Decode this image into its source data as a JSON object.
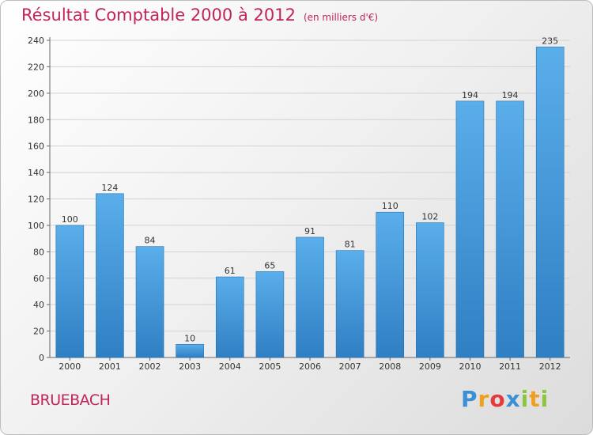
{
  "title": "Résultat Comptable 2000 à 2012",
  "subtitle": "(en milliers d'€)",
  "place": "BRUEBACH",
  "logo": {
    "text": "Proxiti",
    "letters": [
      {
        "char": "P",
        "color": "#3a8fd6"
      },
      {
        "char": "r",
        "color": "#f0a020"
      },
      {
        "char": "o",
        "color": "#e43c3c"
      },
      {
        "char": "x",
        "color": "#3a8fd6"
      },
      {
        "char": "i",
        "color": "#8cc63f"
      },
      {
        "char": "t",
        "color": "#f0a020"
      },
      {
        "char": "i",
        "color": "#8cc63f"
      }
    ]
  },
  "chart_data": {
    "type": "bar",
    "categories": [
      "2000",
      "2001",
      "2002",
      "2003",
      "2004",
      "2005",
      "2006",
      "2007",
      "2008",
      "2009",
      "2010",
      "2011",
      "2012"
    ],
    "values": [
      100,
      124,
      84,
      10,
      61,
      65,
      91,
      81,
      110,
      102,
      194,
      194,
      235
    ],
    "ylim": [
      0,
      240
    ],
    "yticks": [
      0,
      20,
      40,
      60,
      80,
      100,
      120,
      140,
      160,
      180,
      200,
      220,
      240
    ],
    "grid": true,
    "bar_color_top": "#5aaeea",
    "bar_color_bottom": "#2f7fc3"
  }
}
